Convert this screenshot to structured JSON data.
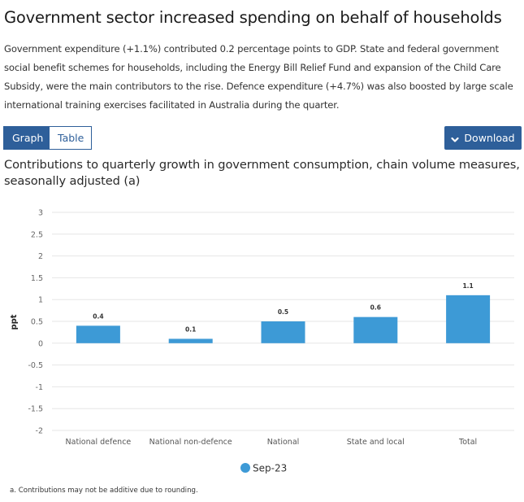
{
  "page": {
    "title": "Government sector increased spending on behalf of households",
    "description": "Government expenditure (+1.1%) contributed 0.2 percentage points to GDP. State and federal government social benefit schemes for households, including the Energy Bill Relief Fund and expansion of the Child Care Subsidy, were the main contributors to the rise. Defence expenditure (+4.7%) was also boosted by large scale international training exercises facilitated in Australia during the quarter."
  },
  "controls": {
    "tabs": [
      {
        "label": "Graph",
        "active": true
      },
      {
        "label": "Table",
        "active": false
      }
    ],
    "download_label": "Download",
    "download_icon": "chevron-down-icon"
  },
  "colors": {
    "accent": "#2e5f9a",
    "bar": "#3d9ad6",
    "grid": "#e6e6e6"
  },
  "chart_data": {
    "type": "bar",
    "title": "Contributions to quarterly growth in government consumption, chain volume measures, seasonally adjusted (a)",
    "xlabel": "",
    "ylabel": "ppt",
    "ylim": [
      -2,
      3
    ],
    "yticks": [
      3,
      2.5,
      2,
      1.5,
      1,
      0.5,
      0,
      -0.5,
      -1,
      -1.5,
      -2
    ],
    "ytick_labels": [
      "3",
      "2.5",
      "2",
      "1.5",
      "1",
      "0.5",
      "0",
      "-0.5",
      "-1",
      "-1.5",
      "-2"
    ],
    "grid": true,
    "categories": [
      "National defence",
      "National non-defence",
      "National",
      "State and local",
      "Total"
    ],
    "series": [
      {
        "name": "Sep-23",
        "values": [
          0.4,
          0.1,
          0.5,
          0.6,
          1.1
        ],
        "labels": [
          "0.4",
          "0.1",
          "0.5",
          "0.6",
          "1.1"
        ]
      }
    ],
    "legend": {
      "position": "bottom-center",
      "entries": [
        "Sep-23"
      ]
    },
    "footnote": "a. Contributions may not be additive due to rounding."
  }
}
